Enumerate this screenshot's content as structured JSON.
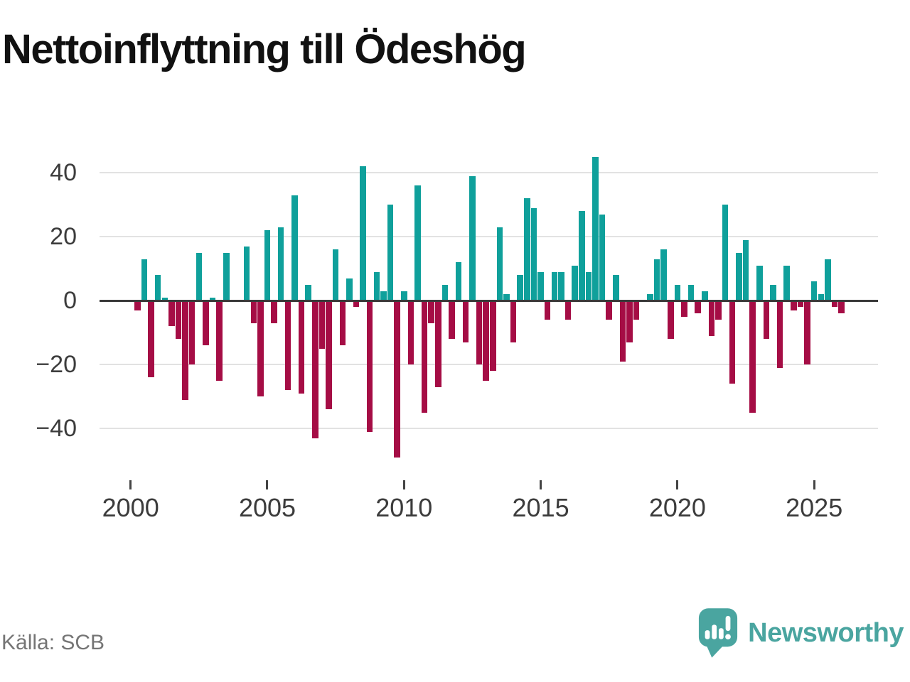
{
  "title": "Nettoinflyttning till Ödeshög",
  "source": "Källa: SCB",
  "branding": {
    "logo_text": "Newsworthy",
    "logo_icon": "newsworthy-bubble-chart-icon",
    "logo_color": "#4aa5a0"
  },
  "colors": {
    "positive": "#0fa09b",
    "negative": "#a50d45",
    "axis": "#3a3a3a",
    "gridline": "#e2e2e2",
    "tick_label": "#3c3c3c",
    "source_text": "#757575",
    "title_text": "#111111"
  },
  "chart_data": {
    "type": "bar",
    "title": "Nettoinflyttning till Ödeshög",
    "xlabel": "",
    "ylabel": "",
    "grid": "horizontal",
    "legend": "none",
    "ylim": [
      -55,
      50
    ],
    "yticks": [
      {
        "label": "40",
        "v": 40
      },
      {
        "label": "20",
        "v": 20
      },
      {
        "label": "0",
        "v": 0
      },
      {
        "label": "−20",
        "v": -20
      },
      {
        "label": "−40",
        "v": -40
      }
    ],
    "xticks": [
      {
        "label": "2000",
        "year": 2000
      },
      {
        "label": "2005",
        "year": 2005
      },
      {
        "label": "2010",
        "year": 2010
      },
      {
        "label": "2015",
        "year": 2015
      },
      {
        "label": "2020",
        "year": 2020
      },
      {
        "label": "2025",
        "year": 2025
      }
    ],
    "x": [
      "2000Q2",
      "2000Q3",
      "2000Q4",
      "2001Q1",
      "2001Q2",
      "2001Q3",
      "2001Q4",
      "2002Q1",
      "2002Q2",
      "2002Q3",
      "2002Q4",
      "2003Q1",
      "2003Q2",
      "2003Q3",
      "2003Q4",
      "2004Q1",
      "2004Q2",
      "2004Q3",
      "2004Q4",
      "2005Q1",
      "2005Q2",
      "2005Q3",
      "2005Q4",
      "2006Q1",
      "2006Q2",
      "2006Q3",
      "2006Q4",
      "2007Q1",
      "2007Q2",
      "2007Q3",
      "2007Q4",
      "2008Q1",
      "2008Q2",
      "2008Q3",
      "2008Q4",
      "2009Q1",
      "2009Q2",
      "2009Q3",
      "2009Q4",
      "2010Q1",
      "2010Q2",
      "2010Q3",
      "2010Q4",
      "2011Q1",
      "2011Q2",
      "2011Q3",
      "2011Q4",
      "2012Q1",
      "2012Q2",
      "2012Q3",
      "2012Q4",
      "2013Q1",
      "2013Q2",
      "2013Q3",
      "2013Q4",
      "2014Q1",
      "2014Q2",
      "2014Q3",
      "2014Q4",
      "2015Q1",
      "2015Q2",
      "2015Q3",
      "2015Q4",
      "2016Q1",
      "2016Q2",
      "2016Q3",
      "2016Q4",
      "2017Q1",
      "2017Q2",
      "2017Q3",
      "2017Q4",
      "2018Q1",
      "2018Q2",
      "2018Q3",
      "2018Q4",
      "2019Q1",
      "2019Q2",
      "2019Q3",
      "2019Q4",
      "2020Q1",
      "2020Q2",
      "2020Q3",
      "2020Q4",
      "2021Q1",
      "2021Q2",
      "2021Q3",
      "2021Q4",
      "2022Q1",
      "2022Q2",
      "2022Q3",
      "2022Q4",
      "2023Q1",
      "2023Q2",
      "2023Q3",
      "2023Q4",
      "2024Q1",
      "2024Q2",
      "2024Q3",
      "2024Q4",
      "2025Q1",
      "2025Q2",
      "2025Q3",
      "2025Q4",
      "2026Q1"
    ],
    "values": [
      -3,
      13,
      -24,
      8,
      1,
      -8,
      -12,
      -31,
      -20,
      15,
      -14,
      1,
      -25,
      15,
      0,
      0,
      17,
      -7,
      -30,
      22,
      -7,
      23,
      -28,
      33,
      -29,
      5,
      -43,
      -15,
      -34,
      16,
      -14,
      7,
      -2,
      42,
      -41,
      9,
      3,
      30,
      -49,
      3,
      -20,
      36,
      -35,
      -7,
      -27,
      5,
      -12,
      12,
      -13,
      39,
      -20,
      -25,
      -22,
      23,
      2,
      -13,
      8,
      32,
      29,
      9,
      -6,
      9,
      9,
      -6,
      11,
      28,
      9,
      45,
      27,
      -6,
      8,
      -19,
      -13,
      -6,
      0,
      2,
      13,
      16,
      -12,
      5,
      -5,
      5,
      -4,
      3,
      -11,
      -6,
      30,
      -26,
      15,
      19,
      -35,
      11,
      -12,
      5,
      -21,
      11,
      -3,
      -2,
      -20,
      6,
      2,
      13,
      -2,
      -4
    ]
  }
}
